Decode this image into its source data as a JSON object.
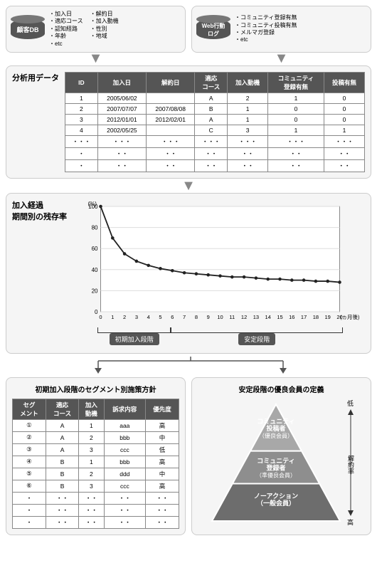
{
  "top": {
    "left": {
      "title": "顧客DB",
      "cols": [
        [
          "加入日",
          "適応コース",
          "認知経路",
          "年齢",
          "etc"
        ],
        [
          "解約日",
          "加入動機",
          "性別",
          "地域"
        ]
      ]
    },
    "right": {
      "title": "Web行動\nログ",
      "cols": [
        [
          "コミュニティ登録有無",
          "コミュニティ投稿有無",
          "メルマガ登録",
          "etc"
        ]
      ]
    }
  },
  "analysis": {
    "label": "分析用データ",
    "headers": [
      "ID",
      "加入日",
      "解約日",
      "適応\nコース",
      "加入動機",
      "コミュニティ\n登録有無",
      "投稿有無"
    ],
    "rows": [
      [
        "1",
        "2005/06/02",
        "",
        "A",
        "2",
        "1",
        "0"
      ],
      [
        "2",
        "2007/07/07",
        "2007/08/08",
        "B",
        "1",
        "0",
        "0"
      ],
      [
        "3",
        "2012/01/01",
        "2012/02/01",
        "A",
        "1",
        "0",
        "0"
      ],
      [
        "4",
        "2002/05/25",
        "",
        "C",
        "3",
        "1",
        "1"
      ],
      [
        "・・・",
        "・・・",
        "・・・",
        "・・・",
        "・・・",
        "・・・",
        "・・・"
      ],
      [
        "・",
        "・・",
        "・・",
        "・・",
        "・・",
        "・・",
        "・・"
      ],
      [
        "・",
        "・・",
        "・・",
        "・・",
        "・・",
        "・・",
        "・・"
      ]
    ]
  },
  "chart": {
    "label": "加入経過\n期間別の残存率",
    "y_label": "(%)",
    "x_label": "(ヵ月後)",
    "x_ticks": [
      0,
      1,
      2,
      3,
      4,
      5,
      6,
      7,
      8,
      9,
      10,
      11,
      12,
      13,
      14,
      15,
      16,
      17,
      18,
      19,
      20
    ],
    "y_ticks": [
      0,
      20,
      40,
      60,
      80,
      100
    ],
    "values": [
      100,
      70,
      55,
      48,
      44,
      41,
      39,
      37,
      36,
      35,
      34,
      33,
      33,
      32,
      31,
      31,
      30,
      30,
      29,
      29,
      28
    ],
    "bracket_left": "初期加入段階",
    "bracket_right": "安定段階",
    "bracket_split_index": 6,
    "line_color": "#222",
    "marker_color": "#222",
    "grid_color": "#ddd",
    "background_color": "#fff"
  },
  "bottom_left": {
    "title": "初期加入段階のセグメント別施策方針",
    "headers": [
      "セグ\nメント",
      "適応\nコース",
      "加入\n動機",
      "訴求内容",
      "優先度"
    ],
    "rows": [
      [
        "①",
        "A",
        "1",
        "aaa",
        "高"
      ],
      [
        "②",
        "A",
        "2",
        "bbb",
        "中"
      ],
      [
        "③",
        "A",
        "3",
        "ccc",
        "低"
      ],
      [
        "④",
        "B",
        "1",
        "bbb",
        "高"
      ],
      [
        "⑤",
        "B",
        "2",
        "ddd",
        "中"
      ],
      [
        "⑥",
        "B",
        "3",
        "ccc",
        "高"
      ],
      [
        "・",
        "・・",
        "・・",
        "・・",
        "・・"
      ],
      [
        "・",
        "・・",
        "・・",
        "・・",
        "・・"
      ],
      [
        "・",
        "・・",
        "・・",
        "・・",
        "・・"
      ]
    ]
  },
  "bottom_right": {
    "title": "安定段階の優良会員の定義",
    "tiers": [
      {
        "line1": "コミュニティ",
        "line2": "投稿者",
        "line3": "（優良会員）",
        "color": "#a8a8a8"
      },
      {
        "line1": "コミュニティ",
        "line2": "登録者",
        "line3": "（準優良会員）",
        "color": "#8e8e8e"
      },
      {
        "line1": "ノーアクション",
        "line2": "（一般会員）",
        "line3": "",
        "color": "#6d6d6d"
      }
    ],
    "arrow_top": "低",
    "arrow_mid": "解約率",
    "arrow_bottom": "高"
  }
}
